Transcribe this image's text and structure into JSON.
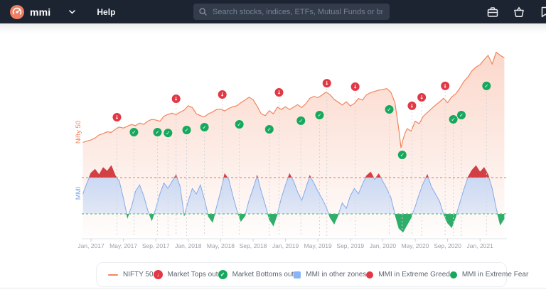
{
  "navbar": {
    "brand": "mmi",
    "menu": {
      "help": "Help"
    },
    "search": {
      "placeholder": "Search stocks, indices, ETFs, Mutual Funds or bran"
    },
    "icons": [
      "mmi-logo-icon",
      "chevron-down-icon",
      "search-icon",
      "portfolio-icon",
      "basket-icon",
      "watchlist-icon"
    ]
  },
  "colors": {
    "navbar_bg": "#1d2431",
    "nifty_line": "#f2845c",
    "tops_red": "#e23744",
    "bottoms_green": "#16a95e",
    "mmi_blue_line": "#84abe9",
    "mmi_blue_fill": "#b9d1f6",
    "mmi_greed_fill": "#d23f44",
    "mmi_fear_fill": "#2fae6a",
    "greed_dash": "#ef8a80",
    "fear_dash": "#5cc389",
    "axis_text": "#9aa1ab"
  },
  "chart_data": {
    "type": "area",
    "x_unit": "months since Jan 2017",
    "x_ticks": [
      "Jan, 2017",
      "May, 2017",
      "Sep, 2017",
      "Jan, 2018",
      "May, 2018",
      "Sep, 2018",
      "Jan, 2019",
      "May, 2019",
      "Sep, 2019",
      "Jan, 2020",
      "May, 2020",
      "Sep, 2020",
      "Jan, 2021"
    ],
    "x_tick_months": [
      0,
      4,
      8,
      12,
      16,
      20,
      24,
      28,
      32,
      36,
      40,
      44,
      48
    ],
    "nifty": {
      "name": "Nifty 50",
      "axis_label": "Nifty 50",
      "ylim": [
        7500,
        15500
      ],
      "series": [
        [
          -1,
          8050
        ],
        [
          -0.5,
          8150
        ],
        [
          0,
          8250
        ],
        [
          0.5,
          8400
        ],
        [
          1,
          8650
        ],
        [
          1.5,
          8750
        ],
        [
          2,
          8900
        ],
        [
          2.5,
          8850
        ],
        [
          3,
          9100
        ],
        [
          3.5,
          9280
        ],
        [
          4,
          9200
        ],
        [
          4.5,
          9350
        ],
        [
          5,
          9480
        ],
        [
          5.5,
          9400
        ],
        [
          6,
          9600
        ],
        [
          6.5,
          9500
        ],
        [
          7,
          9750
        ],
        [
          7.5,
          9900
        ],
        [
          8,
          9850
        ],
        [
          8.5,
          9750
        ],
        [
          9,
          10150
        ],
        [
          9.5,
          10300
        ],
        [
          10,
          10400
        ],
        [
          10.5,
          10280
        ],
        [
          11,
          10480
        ],
        [
          11.5,
          10650
        ],
        [
          12,
          11000
        ],
        [
          12.5,
          10850
        ],
        [
          13,
          10350
        ],
        [
          13.5,
          10200
        ],
        [
          14,
          10100
        ],
        [
          14.5,
          10350
        ],
        [
          15,
          10500
        ],
        [
          15.5,
          10700
        ],
        [
          16,
          10720
        ],
        [
          16.5,
          10580
        ],
        [
          17,
          10780
        ],
        [
          17.5,
          10920
        ],
        [
          18,
          11000
        ],
        [
          18.5,
          11250
        ],
        [
          19,
          11450
        ],
        [
          19.5,
          11680
        ],
        [
          20,
          11480
        ],
        [
          20.5,
          10950
        ],
        [
          21,
          10350
        ],
        [
          21.5,
          10200
        ],
        [
          22,
          10600
        ],
        [
          22.5,
          10350
        ],
        [
          23,
          10880
        ],
        [
          23.5,
          10700
        ],
        [
          24,
          10920
        ],
        [
          24.5,
          10680
        ],
        [
          25,
          10880
        ],
        [
          25.5,
          11080
        ],
        [
          26,
          10850
        ],
        [
          26.5,
          11150
        ],
        [
          27,
          11600
        ],
        [
          27.5,
          11750
        ],
        [
          28,
          11650
        ],
        [
          28.5,
          11850
        ],
        [
          29,
          12100
        ],
        [
          29.5,
          11880
        ],
        [
          30,
          11500
        ],
        [
          30.5,
          11280
        ],
        [
          31,
          11050
        ],
        [
          31.5,
          11320
        ],
        [
          32,
          10980
        ],
        [
          32.5,
          11180
        ],
        [
          33,
          11580
        ],
        [
          33.5,
          11450
        ],
        [
          34,
          11880
        ],
        [
          34.5,
          12050
        ],
        [
          35,
          12150
        ],
        [
          35.5,
          12250
        ],
        [
          36,
          12300
        ],
        [
          36.5,
          12380
        ],
        [
          37,
          12080
        ],
        [
          37.5,
          11250
        ],
        [
          38,
          9000
        ],
        [
          38.25,
          7610
        ],
        [
          38.5,
          8300
        ],
        [
          38.75,
          8800
        ],
        [
          39,
          9150
        ],
        [
          39.5,
          8950
        ],
        [
          40,
          9750
        ],
        [
          40.5,
          9550
        ],
        [
          41,
          10150
        ],
        [
          41.5,
          10450
        ],
        [
          42,
          10750
        ],
        [
          42.5,
          11050
        ],
        [
          43,
          11300
        ],
        [
          43.5,
          11600
        ],
        [
          44,
          11250
        ],
        [
          44.5,
          11700
        ],
        [
          45,
          11950
        ],
        [
          45.5,
          12400
        ],
        [
          46,
          12950
        ],
        [
          46.5,
          13300
        ],
        [
          47,
          13800
        ],
        [
          47.5,
          14100
        ],
        [
          48,
          14300
        ],
        [
          48.5,
          14700
        ],
        [
          49,
          15050
        ],
        [
          49.5,
          14350
        ],
        [
          50,
          15300
        ],
        [
          50.5,
          15050
        ],
        [
          51,
          14850
        ]
      ]
    },
    "mmi": {
      "name": "MMI",
      "axis_label": "MMI",
      "ylim": [
        0,
        100
      ],
      "greed_threshold": 70,
      "fear_threshold": 30,
      "t_start": -1,
      "t_step": 0.5,
      "values": [
        52,
        64,
        75,
        79,
        73,
        81,
        77,
        83,
        72,
        66,
        47,
        26,
        38,
        55,
        62,
        50,
        34,
        23,
        36,
        52,
        64,
        58,
        66,
        73,
        60,
        28,
        44,
        58,
        52,
        62,
        46,
        27,
        21,
        38,
        55,
        74,
        68,
        50,
        34,
        22,
        28,
        45,
        58,
        72,
        55,
        40,
        24,
        17,
        30,
        48,
        62,
        74,
        66,
        54,
        45,
        58,
        72,
        64,
        55,
        47,
        38,
        26,
        19,
        29,
        42,
        36,
        50,
        58,
        52,
        63,
        72,
        76,
        68,
        74,
        66,
        58,
        48,
        30,
        14,
        10,
        18,
        26,
        38,
        52,
        64,
        73,
        60,
        52,
        44,
        30,
        20,
        15,
        27,
        42,
        57,
        70,
        78,
        83,
        76,
        81,
        73,
        58,
        36,
        18,
        25
      ]
    },
    "market_tops": [
      [
        3.2,
        10070
      ],
      [
        10.5,
        11560
      ],
      [
        16.2,
        11900
      ],
      [
        23.2,
        12070
      ],
      [
        29.1,
        12810
      ],
      [
        32.6,
        12530
      ],
      [
        39.6,
        10990
      ],
      [
        40.8,
        11670
      ],
      [
        43.7,
        12590
      ]
    ],
    "market_bottoms": [
      [
        5.3,
        8870
      ],
      [
        8.2,
        8870
      ],
      [
        9.5,
        8810
      ],
      [
        11.8,
        9040
      ],
      [
        14,
        9270
      ],
      [
        18.3,
        9500
      ],
      [
        22,
        9100
      ],
      [
        25.9,
        9790
      ],
      [
        28.2,
        10240
      ],
      [
        36.8,
        10700
      ],
      [
        38.4,
        7040
      ],
      [
        44.7,
        9900
      ],
      [
        45.7,
        10240
      ],
      [
        48.8,
        12590
      ]
    ]
  },
  "legend": {
    "items": [
      {
        "type": "line",
        "color": "#f2845c",
        "label": "NIFTY 50"
      },
      {
        "type": "top-marker",
        "color": "#e23744",
        "glyph": "↓",
        "label": "Market Tops out"
      },
      {
        "type": "bottom-marker",
        "color": "#16a95e",
        "glyph": "✓",
        "label": "Market Bottoms out"
      },
      {
        "type": "divider"
      },
      {
        "type": "square",
        "color": "#8ab4f8",
        "label": "MMI in other zones"
      },
      {
        "type": "dot",
        "color": "#e23744",
        "label": "MMI in Extreme Greed"
      },
      {
        "type": "dot",
        "color": "#16a95e",
        "label": "MMI in Extreme Fear"
      }
    ]
  }
}
